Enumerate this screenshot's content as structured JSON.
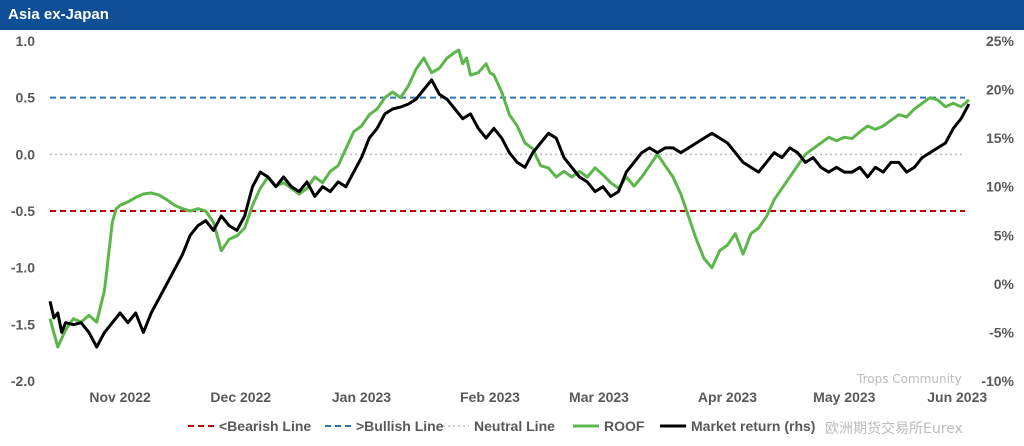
{
  "header": {
    "title": "Asia ex-Japan"
  },
  "chart_data": {
    "type": "line",
    "title": "Asia ex-Japan",
    "y_left": {
      "ticks": [
        "1.0",
        "0.5",
        "0.0",
        "-0.5",
        "-1.0",
        "-1.5",
        "-2.0"
      ],
      "range": [
        -2.0,
        1.0
      ]
    },
    "y_right": {
      "ticks": [
        "25%",
        "20%",
        "15%",
        "10%",
        "5%",
        "0%",
        "-5%",
        "-10%"
      ],
      "range": [
        -10,
        25
      ]
    },
    "x_ticks": [
      "Nov 2022",
      "Dec 2022",
      "Jan 2023",
      "Feb 2023",
      "Mar 2023",
      "Apr 2023",
      "May 2023",
      "Jun 2023"
    ],
    "x_domain": [
      0,
      235
    ],
    "x_tick_positions": [
      18,
      49,
      80,
      113,
      141,
      174,
      204,
      233
    ],
    "reference_lines": [
      {
        "name": "<Bearish Line",
        "value": -0.5,
        "color": "#c00000",
        "style": "dashed"
      },
      {
        "name": ">Bullish Line",
        "value": 0.5,
        "color": "#2e75b6",
        "style": "dashed"
      },
      {
        "name": "Neutral Line",
        "value": 0.0,
        "color": "#bfbfbf",
        "style": "dotted"
      }
    ],
    "series": [
      {
        "name": "ROOF",
        "axis": "left",
        "color": "#5db64a",
        "x": [
          0,
          2,
          4,
          6,
          8,
          10,
          12,
          14,
          15,
          16,
          17,
          18,
          20,
          22,
          24,
          26,
          28,
          30,
          32,
          34,
          36,
          38,
          40,
          42,
          44,
          46,
          48,
          50,
          51,
          52,
          54,
          56,
          58,
          60,
          62,
          64,
          66,
          68,
          70,
          72,
          74,
          76,
          78,
          80,
          82,
          84,
          86,
          88,
          90,
          92,
          94,
          96,
          98,
          100,
          102,
          104,
          105,
          106,
          107,
          108,
          110,
          112,
          113,
          114,
          116,
          118,
          120,
          122,
          124,
          126,
          128,
          130,
          132,
          134,
          136,
          138,
          140,
          142,
          144,
          146,
          148,
          150,
          152,
          154,
          156,
          158,
          160,
          162,
          164,
          166,
          168,
          170,
          172,
          174,
          176,
          178,
          180,
          182,
          184,
          186,
          188,
          190,
          192,
          194,
          196,
          198,
          200,
          202,
          204,
          206,
          208,
          210,
          212,
          214,
          216,
          218,
          220,
          222,
          224,
          226,
          228,
          230,
          232,
          234,
          236
        ],
        "values": [
          -1.45,
          -1.7,
          -1.55,
          -1.45,
          -1.48,
          -1.42,
          -1.48,
          -1.2,
          -0.9,
          -0.6,
          -0.48,
          -0.45,
          -0.42,
          -0.38,
          -0.35,
          -0.34,
          -0.36,
          -0.4,
          -0.45,
          -0.48,
          -0.5,
          -0.48,
          -0.5,
          -0.6,
          -0.85,
          -0.75,
          -0.72,
          -0.65,
          -0.55,
          -0.45,
          -0.3,
          -0.2,
          -0.28,
          -0.25,
          -0.3,
          -0.35,
          -0.3,
          -0.2,
          -0.25,
          -0.15,
          -0.1,
          0.05,
          0.2,
          0.25,
          0.35,
          0.4,
          0.5,
          0.55,
          0.5,
          0.6,
          0.75,
          0.85,
          0.72,
          0.76,
          0.85,
          0.9,
          0.92,
          0.8,
          0.85,
          0.7,
          0.72,
          0.8,
          0.72,
          0.7,
          0.55,
          0.35,
          0.25,
          0.1,
          0.05,
          -0.1,
          -0.12,
          -0.2,
          -0.15,
          -0.2,
          -0.15,
          -0.2,
          -0.12,
          -0.18,
          -0.25,
          -0.3,
          -0.2,
          -0.28,
          -0.2,
          -0.1,
          0.0,
          -0.1,
          -0.2,
          -0.35,
          -0.55,
          -0.75,
          -0.92,
          -1.0,
          -0.85,
          -0.8,
          -0.7,
          -0.88,
          -0.7,
          -0.65,
          -0.55,
          -0.4,
          -0.3,
          -0.2,
          -0.1,
          0.0,
          0.05,
          0.1,
          0.15,
          0.12,
          0.15,
          0.14,
          0.2,
          0.25,
          0.22,
          0.25,
          0.3,
          0.35,
          0.33,
          0.4,
          0.45,
          0.5,
          0.48,
          0.42,
          0.45,
          0.42,
          0.48
        ]
      },
      {
        "name": "Market return (rhs)",
        "axis": "right",
        "color": "#000000",
        "x": [
          0,
          1,
          2,
          3,
          4,
          6,
          8,
          10,
          12,
          14,
          16,
          18,
          20,
          22,
          24,
          26,
          28,
          30,
          32,
          34,
          36,
          38,
          40,
          42,
          44,
          46,
          48,
          50,
          52,
          54,
          56,
          58,
          60,
          62,
          64,
          66,
          68,
          70,
          72,
          74,
          76,
          78,
          80,
          82,
          84,
          86,
          88,
          90,
          92,
          94,
          96,
          98,
          100,
          102,
          104,
          106,
          108,
          110,
          112,
          114,
          116,
          118,
          120,
          122,
          124,
          126,
          128,
          130,
          132,
          134,
          136,
          138,
          140,
          142,
          144,
          146,
          148,
          150,
          152,
          154,
          156,
          158,
          160,
          162,
          164,
          166,
          168,
          170,
          172,
          174,
          176,
          178,
          180,
          182,
          184,
          186,
          188,
          190,
          192,
          194,
          196,
          198,
          200,
          202,
          204,
          206,
          208,
          210,
          212,
          214,
          216,
          218,
          220,
          222,
          224,
          226,
          228,
          230,
          232,
          234,
          236
        ],
        "values": [
          -1.8,
          -3.5,
          -3.0,
          -5.0,
          -4.0,
          -4.2,
          -4.0,
          -5.0,
          -6.5,
          -5.0,
          -4.0,
          -3.0,
          -4.0,
          -3.0,
          -5.0,
          -3.0,
          -1.5,
          0.0,
          1.5,
          3.0,
          5.0,
          6.0,
          6.5,
          5.5,
          7.0,
          6.0,
          5.5,
          7.0,
          10.0,
          11.5,
          11.0,
          10.0,
          11.0,
          10.0,
          9.5,
          10.5,
          9.0,
          10.0,
          9.5,
          10.5,
          10.0,
          11.5,
          13.0,
          15.0,
          16.0,
          17.5,
          18.0,
          18.2,
          18.5,
          19.0,
          20.0,
          21.0,
          19.5,
          19.0,
          18.0,
          17.0,
          17.5,
          16.0,
          15.0,
          16.0,
          15.0,
          13.5,
          12.5,
          12.0,
          13.5,
          14.5,
          15.5,
          15.0,
          13.0,
          12.0,
          11.0,
          10.5,
          9.5,
          10.0,
          9.0,
          9.5,
          11.5,
          12.5,
          13.5,
          14.0,
          13.5,
          14.0,
          14.0,
          13.5,
          14.0,
          14.5,
          15.0,
          15.5,
          15.0,
          14.5,
          13.5,
          12.5,
          12.0,
          11.5,
          12.5,
          13.5,
          13.0,
          14.0,
          13.5,
          12.5,
          13.0,
          12.0,
          11.5,
          12.0,
          11.5,
          11.5,
          12.0,
          11.0,
          12.0,
          11.5,
          12.5,
          12.5,
          11.5,
          12.0,
          13.0,
          13.5,
          14.0,
          14.5,
          16.0,
          17.0,
          18.5
        ]
      }
    ],
    "legend": {
      "position": "bottom",
      "entries": [
        "<Bearish Line",
        ">Bullish Line",
        "Neutral Line",
        "ROOF",
        "Market return (rhs)"
      ]
    }
  },
  "watermark": {
    "line1": "Trops Community",
    "line2": "欧洲期货交易所Eurex"
  }
}
